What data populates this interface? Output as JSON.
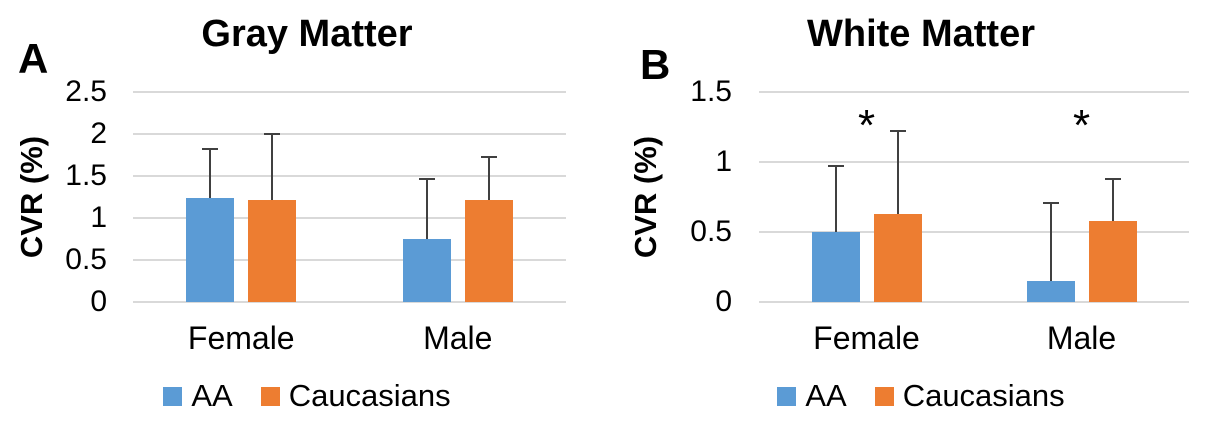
{
  "chart_data": [
    {
      "panel_label": "A",
      "type": "bar",
      "title": "Gray Matter",
      "ylabel": "CVR (%)",
      "xlabel": "",
      "categories": [
        "Female",
        "Male"
      ],
      "series": [
        {
          "name": "AA",
          "color": "#5B9BD5",
          "values": [
            1.24,
            0.75
          ],
          "errors_up": [
            0.58,
            0.71
          ]
        },
        {
          "name": "Caucasians",
          "color": "#ED7D31",
          "values": [
            1.21,
            1.21
          ],
          "errors_up": [
            0.79,
            0.52
          ]
        }
      ],
      "ylim": [
        0,
        2.5
      ],
      "yticks": [
        0,
        0.5,
        1,
        1.5,
        2,
        2.5
      ],
      "ytick_labels": [
        "0",
        "0.5",
        "1",
        "1.5",
        "2",
        "2.5"
      ],
      "grid": true,
      "legend_position": "bottom",
      "annotations": []
    },
    {
      "panel_label": "B",
      "type": "bar",
      "title": "White Matter",
      "ylabel": "CVR (%)",
      "xlabel": "",
      "categories": [
        "Female",
        "Male"
      ],
      "series": [
        {
          "name": "AA",
          "color": "#5B9BD5",
          "values": [
            0.5,
            0.15
          ],
          "errors_up": [
            0.47,
            0.56
          ]
        },
        {
          "name": "Caucasians",
          "color": "#ED7D31",
          "values": [
            0.63,
            0.58
          ],
          "errors_up": [
            0.59,
            0.3
          ]
        }
      ],
      "ylim": [
        0,
        1.5
      ],
      "yticks": [
        0,
        0.5,
        1,
        1.5
      ],
      "ytick_labels": [
        "0",
        "0.5",
        "1",
        "1.5"
      ],
      "grid": true,
      "legend_position": "bottom",
      "annotations": [
        {
          "text": "*",
          "category": "Female",
          "y": 1.3
        },
        {
          "text": "*",
          "category": "Male",
          "y": 1.3
        }
      ]
    }
  ],
  "style": {
    "gridline_color": "#d9d9d9",
    "error_bar_color": "#404040",
    "text_color": "#000000",
    "background_color": "#ffffff"
  }
}
